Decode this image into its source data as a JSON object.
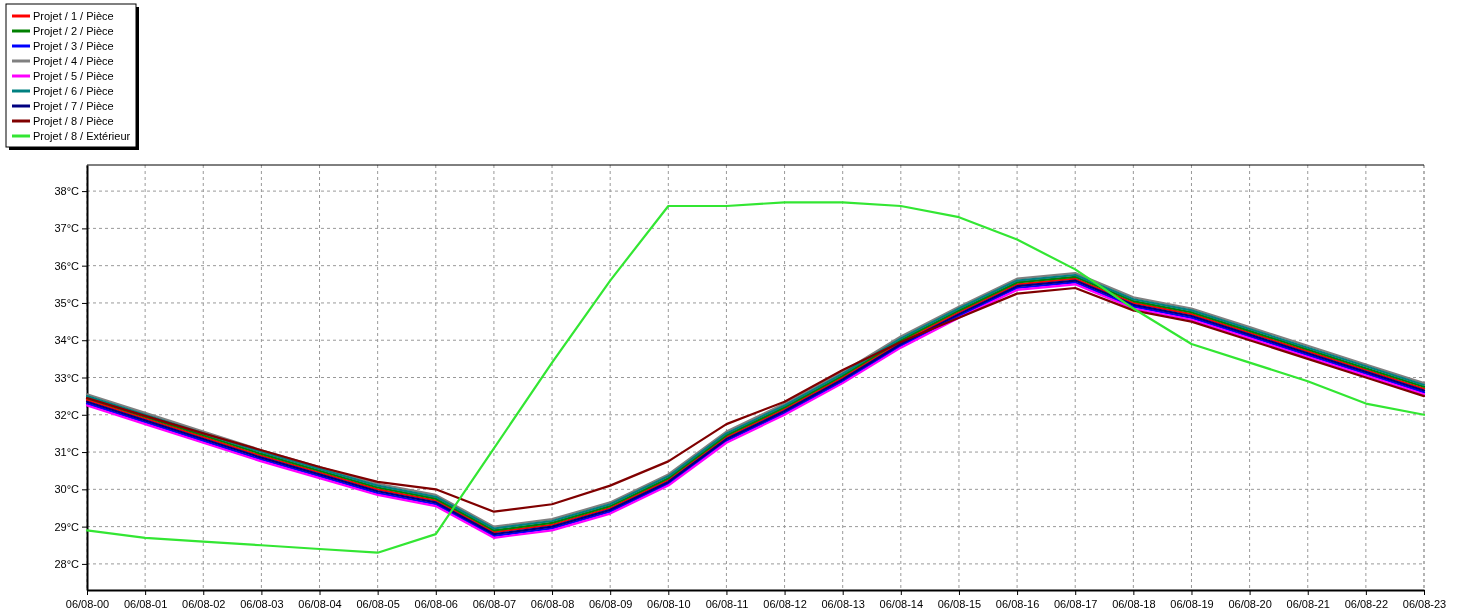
{
  "chart_data": {
    "type": "line",
    "categories": [
      "06/08-00",
      "06/08-01",
      "06/08-02",
      "06/08-03",
      "06/08-04",
      "06/08-05",
      "06/08-06",
      "06/08-07",
      "06/08-08",
      "06/08-09",
      "06/08-10",
      "06/08-11",
      "06/08-12",
      "06/08-13",
      "06/08-14",
      "06/08-15",
      "06/08-16",
      "06/08-17",
      "06/08-18",
      "06/08-19",
      "06/08-20",
      "06/08-21",
      "06/08-22",
      "06/08-23"
    ],
    "ylim": [
      27.3,
      38.7
    ],
    "yticks": [
      {
        "value": 28,
        "label": "28°C"
      },
      {
        "value": 29,
        "label": "29°C"
      },
      {
        "value": 30,
        "label": "30°C"
      },
      {
        "value": 31,
        "label": "31°C"
      },
      {
        "value": 32,
        "label": "32°C"
      },
      {
        "value": 33,
        "label": "33°C"
      },
      {
        "value": 34,
        "label": "34°C"
      },
      {
        "value": 35,
        "label": "35°C"
      },
      {
        "value": 36,
        "label": "36°C"
      },
      {
        "value": 37,
        "label": "37°C"
      },
      {
        "value": 38,
        "label": "38°C"
      }
    ],
    "grid": true,
    "legend": "top left",
    "line_style": "solid",
    "marker": "none",
    "series": [
      {
        "name": "Projet / 1 / Pièce",
        "color": "#ff0000",
        "values": [
          32.4,
          31.9,
          31.4,
          30.9,
          30.45,
          30.0,
          29.7,
          28.85,
          29.05,
          29.5,
          30.25,
          31.4,
          32.15,
          33.0,
          33.95,
          34.75,
          35.5,
          35.65,
          35.0,
          34.7,
          34.2,
          33.7,
          33.2,
          32.7
        ]
      },
      {
        "name": "Projet / 2 / Pièce",
        "color": "#008000",
        "values": [
          32.45,
          31.95,
          31.45,
          30.95,
          30.5,
          30.05,
          29.75,
          28.9,
          29.1,
          29.55,
          30.3,
          31.45,
          32.2,
          33.05,
          34.0,
          34.8,
          35.55,
          35.7,
          35.05,
          34.75,
          34.25,
          33.75,
          33.25,
          32.75
        ]
      },
      {
        "name": "Projet / 3 / Pièce",
        "color": "#0000ff",
        "values": [
          32.3,
          31.8,
          31.3,
          30.8,
          30.35,
          29.9,
          29.6,
          28.75,
          28.95,
          29.4,
          30.15,
          31.3,
          32.05,
          32.9,
          33.85,
          34.65,
          35.4,
          35.55,
          34.9,
          34.6,
          34.1,
          33.6,
          33.1,
          32.6
        ]
      },
      {
        "name": "Projet / 4 / Pièce",
        "color": "#808080",
        "values": [
          32.55,
          32.05,
          31.55,
          31.05,
          30.6,
          30.15,
          29.85,
          29.0,
          29.2,
          29.65,
          30.4,
          31.55,
          32.3,
          33.15,
          34.1,
          34.9,
          35.65,
          35.8,
          35.15,
          34.85,
          34.35,
          33.85,
          33.35,
          32.85
        ]
      },
      {
        "name": "Projet / 5 / Pièce",
        "color": "#ff00ff",
        "values": [
          32.25,
          31.75,
          31.25,
          30.75,
          30.3,
          29.85,
          29.55,
          28.7,
          28.9,
          29.35,
          30.1,
          31.25,
          32.0,
          32.85,
          33.8,
          34.6,
          35.35,
          35.5,
          34.85,
          34.55,
          34.05,
          33.55,
          33.05,
          32.55
        ]
      },
      {
        "name": "Projet / 6 / Pièce",
        "color": "#008080",
        "values": [
          32.5,
          32.0,
          31.5,
          31.0,
          30.55,
          30.1,
          29.8,
          28.95,
          29.15,
          29.6,
          30.35,
          31.5,
          32.25,
          33.1,
          34.05,
          34.85,
          35.6,
          35.75,
          35.1,
          34.8,
          34.3,
          33.8,
          33.3,
          32.8
        ]
      },
      {
        "name": "Projet / 7 / Pièce",
        "color": "#000080",
        "values": [
          32.35,
          31.85,
          31.35,
          30.85,
          30.4,
          29.95,
          29.65,
          28.8,
          29.0,
          29.45,
          30.2,
          31.35,
          32.1,
          32.95,
          33.9,
          34.7,
          35.45,
          35.6,
          34.95,
          34.65,
          34.15,
          33.65,
          33.15,
          32.65
        ]
      },
      {
        "name": "Projet / 8 / Pièce",
        "color": "#800000",
        "values": [
          32.45,
          31.97,
          31.5,
          31.05,
          30.6,
          30.2,
          30.0,
          29.4,
          29.6,
          30.1,
          30.75,
          31.75,
          32.35,
          33.2,
          33.95,
          34.6,
          35.25,
          35.4,
          34.8,
          34.5,
          34.0,
          33.5,
          33.0,
          32.5
        ]
      },
      {
        "name": "Projet / 8 / Extérieur",
        "color": "#33e633",
        "values": [
          28.9,
          28.7,
          28.6,
          28.5,
          28.4,
          28.3,
          28.8,
          31.1,
          33.4,
          35.6,
          37.6,
          37.6,
          37.7,
          37.7,
          37.6,
          37.3,
          36.7,
          35.9,
          34.85,
          33.9,
          33.4,
          32.9,
          32.3,
          32.0
        ]
      }
    ]
  }
}
